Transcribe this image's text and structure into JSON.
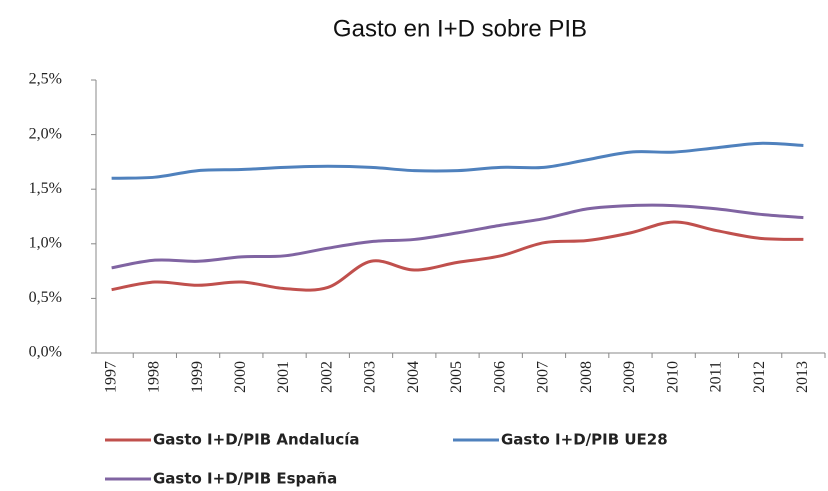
{
  "chart_data": {
    "type": "line",
    "title": "Gasto en I+D sobre PIB",
    "categories": [
      "1997",
      "1998",
      "1999",
      "2000",
      "2001",
      "2002",
      "2003",
      "2004",
      "2005",
      "2006",
      "2007",
      "2008",
      "2009",
      "2010",
      "2011",
      "2012",
      "2013"
    ],
    "series": [
      {
        "name": "Gasto I+D/PIB Andalucía",
        "color": "#c0504d",
        "values": [
          0.58,
          0.65,
          0.62,
          0.65,
          0.59,
          0.6,
          0.84,
          0.76,
          0.83,
          0.89,
          1.01,
          1.03,
          1.1,
          1.2,
          1.12,
          1.05,
          1.04
        ]
      },
      {
        "name": "Gasto I+D/PIB UE28",
        "color": "#4f81bd",
        "values": [
          1.6,
          1.61,
          1.67,
          1.68,
          1.7,
          1.71,
          1.7,
          1.67,
          1.67,
          1.7,
          1.7,
          1.77,
          1.84,
          1.84,
          1.88,
          1.92,
          1.9
        ]
      },
      {
        "name": "Gasto I+D/PIB España",
        "color": "#8064a2",
        "values": [
          0.78,
          0.85,
          0.84,
          0.88,
          0.89,
          0.96,
          1.02,
          1.04,
          1.1,
          1.17,
          1.23,
          1.32,
          1.35,
          1.35,
          1.32,
          1.27,
          1.24
        ]
      }
    ],
    "ylim": [
      0,
      2.5
    ],
    "yticks": [
      {
        "value": 0,
        "label": "0,0%"
      },
      {
        "value": 0.5,
        "label": "0,5%"
      },
      {
        "value": 1,
        "label": "1,0%"
      },
      {
        "value": 1.5,
        "label": "1,5%"
      },
      {
        "value": 2,
        "label": "2,0%"
      },
      {
        "value": 2.5,
        "label": "2,5%"
      }
    ],
    "grid": false
  }
}
